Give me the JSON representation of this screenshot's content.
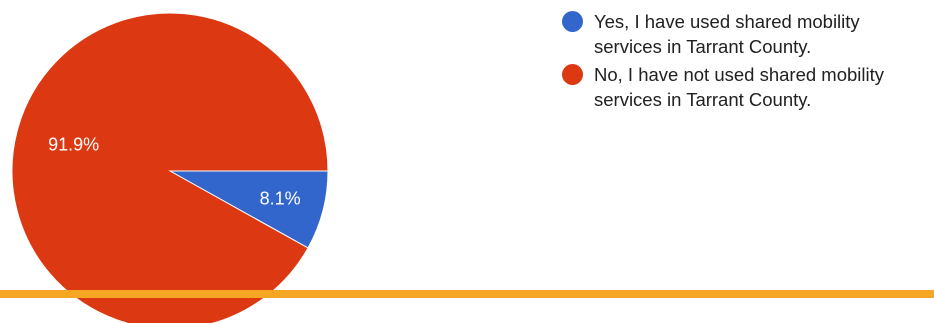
{
  "chart_data": {
    "type": "pie",
    "slices": [
      {
        "label": "Yes, I have used shared mobility services in Tarrant County.",
        "value": 8.1,
        "display": "8.1%",
        "color": "#3366cc"
      },
      {
        "label": "No, I have not used shared mobility services in Tarrant County.",
        "value": 91.9,
        "display": "91.9%",
        "color": "#dc3912"
      }
    ],
    "legend_position": "right"
  },
  "divider_color": "#f5a623"
}
